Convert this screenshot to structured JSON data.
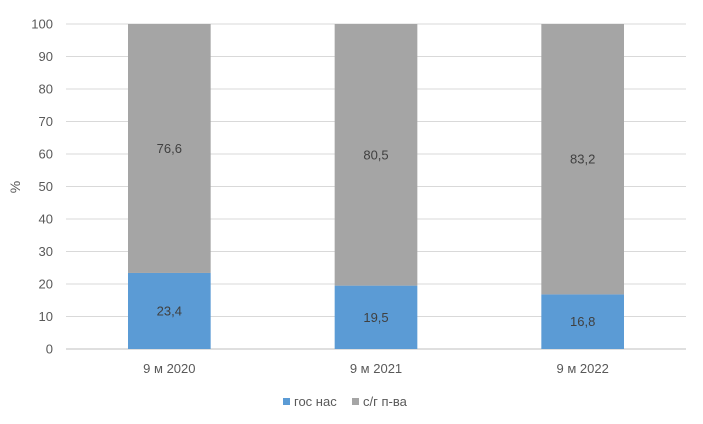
{
  "chart_data": {
    "type": "bar",
    "stacked": true,
    "categories": [
      "9 м 2020",
      "9 м 2021",
      "9 м 2022"
    ],
    "series": [
      {
        "name": "гос нас",
        "color": "#5B9BD5",
        "values": [
          23.4,
          19.5,
          16.8
        ],
        "labels": [
          "23,4",
          "19,5",
          "16,8"
        ]
      },
      {
        "name": "с/г п-ва",
        "color": "#A5A5A5",
        "values": [
          76.6,
          80.5,
          83.2
        ],
        "labels": [
          "76,6",
          "80,5",
          "83,2"
        ]
      }
    ],
    "ylabel": "%",
    "ylim": [
      0,
      100
    ],
    "yticks": [
      0,
      10,
      20,
      30,
      40,
      50,
      60,
      70,
      80,
      90,
      100
    ],
    "grid": true,
    "legend_position": "bottom"
  }
}
